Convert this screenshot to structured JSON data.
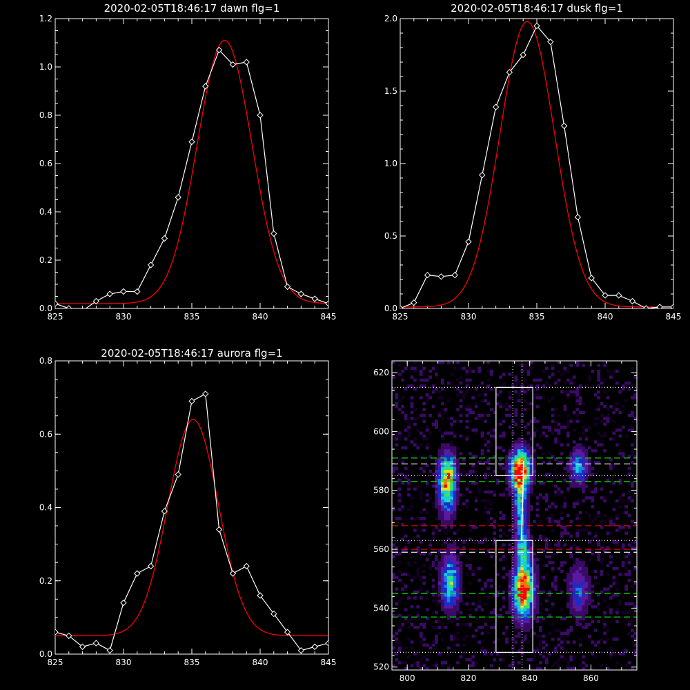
{
  "chart_data": [
    {
      "type": "line",
      "title": "2020-02-05T18:46:17 dawn flg=1",
      "xlim": [
        825,
        845
      ],
      "ylim": [
        0,
        1.2
      ],
      "xticks": [
        "825",
        "830",
        "835",
        "840",
        "845"
      ],
      "yticks": [
        "0.0",
        "0.2",
        "0.4",
        "0.6",
        "0.8",
        "1.0",
        "1.2"
      ],
      "series": [
        {
          "color": "#ffffff",
          "marker": "diamond",
          "x": [
            825,
            826,
            827,
            828,
            829,
            830,
            831,
            832,
            833,
            834,
            835,
            836,
            837,
            838,
            839,
            840,
            841,
            842,
            843,
            844,
            845
          ],
          "y": [
            0.02,
            0.0,
            -0.01,
            0.03,
            0.06,
            0.07,
            0.07,
            0.18,
            0.29,
            0.46,
            0.69,
            0.92,
            1.07,
            1.01,
            1.02,
            0.8,
            0.31,
            0.09,
            0.06,
            0.04,
            0.02
          ]
        },
        {
          "color": "#ff0000",
          "gaussian": {
            "amp": 1.09,
            "mu": 837.4,
            "sigma": 2.0,
            "base": 0.02
          }
        }
      ]
    },
    {
      "type": "line",
      "title": "2020-02-05T18:46:17 dusk flg=1",
      "xlim": [
        825,
        845
      ],
      "ylim": [
        0,
        2.0
      ],
      "xticks": [
        "825",
        "830",
        "835",
        "840",
        "845"
      ],
      "yticks": [
        "0.0",
        "0.5",
        "1.0",
        "1.5",
        "2.0"
      ],
      "series": [
        {
          "color": "#ffffff",
          "marker": "diamond",
          "x": [
            825,
            826,
            827,
            828,
            829,
            830,
            831,
            832,
            833,
            834,
            835,
            836,
            837,
            838,
            839,
            840,
            841,
            842,
            843,
            844,
            845
          ],
          "y": [
            0.0,
            0.04,
            0.23,
            0.22,
            0.23,
            0.46,
            0.92,
            1.39,
            1.63,
            1.75,
            1.95,
            1.84,
            1.26,
            0.63,
            0.21,
            0.09,
            0.09,
            0.05,
            0.0,
            0.01,
            0.01
          ]
        },
        {
          "color": "#ff0000",
          "gaussian": {
            "amp": 1.97,
            "mu": 834.3,
            "sigma": 2.0,
            "base": 0.01
          }
        }
      ]
    },
    {
      "type": "line",
      "title": "2020-02-05T18:46:17 aurora flg=1",
      "xlim": [
        825,
        845
      ],
      "ylim": [
        0,
        0.8
      ],
      "xticks": [
        "825",
        "830",
        "835",
        "840",
        "845"
      ],
      "yticks": [
        "0.0",
        "0.2",
        "0.4",
        "0.6",
        "0.8"
      ],
      "series": [
        {
          "color": "#ffffff",
          "marker": "diamond",
          "x": [
            825,
            826,
            827,
            828,
            829,
            830,
            831,
            832,
            833,
            834,
            835,
            836,
            837,
            838,
            839,
            840,
            841,
            842,
            843,
            844,
            845
          ],
          "y": [
            0.06,
            0.05,
            0.02,
            0.03,
            0.01,
            0.14,
            0.22,
            0.24,
            0.39,
            0.49,
            0.69,
            0.71,
            0.34,
            0.22,
            0.24,
            0.16,
            0.11,
            0.06,
            0.01,
            0.02,
            0.03
          ]
        },
        {
          "color": "#ff0000",
          "gaussian": {
            "amp": 0.59,
            "mu": 835.1,
            "sigma": 1.85,
            "base": 0.05
          }
        }
      ]
    },
    {
      "type": "heatmap",
      "xlim": [
        795,
        875
      ],
      "ylim": [
        519,
        624
      ],
      "xticks": [
        "800",
        "820",
        "840",
        "860"
      ],
      "yticks": [
        "520",
        "540",
        "560",
        "580",
        "600",
        "620"
      ],
      "colormap": [
        "#140022",
        "#3a0b66",
        "#5a1aa0",
        "#1a2cc8",
        "#1580e8",
        "#18d0d8",
        "#38e070",
        "#e0e020",
        "#ff7000",
        "#ff0000"
      ],
      "emission_blobs": [
        {
          "x": 813,
          "y": 585,
          "sx": 1.9,
          "sy": 5.0,
          "amp": 0.72
        },
        {
          "x": 813,
          "y": 578,
          "sx": 1.9,
          "sy": 6.0,
          "amp": 0.32
        },
        {
          "x": 837,
          "y": 587,
          "sx": 2.2,
          "sy": 4.5,
          "amp": 1.0
        },
        {
          "x": 837,
          "y": 575,
          "sx": 1.4,
          "sy": 8.0,
          "amp": 0.45
        },
        {
          "x": 856,
          "y": 588,
          "sx": 2.0,
          "sy": 4.0,
          "amp": 0.42
        },
        {
          "x": 814,
          "y": 549,
          "sx": 2.0,
          "sy": 6.0,
          "amp": 0.58
        },
        {
          "x": 838,
          "y": 546,
          "sx": 2.3,
          "sy": 6.0,
          "amp": 0.95
        },
        {
          "x": 838,
          "y": 560,
          "sx": 1.5,
          "sy": 5.0,
          "amp": 0.45
        },
        {
          "x": 856,
          "y": 546,
          "sx": 2.2,
          "sy": 6.0,
          "amp": 0.32
        }
      ],
      "boxes": [
        {
          "x0": 829,
          "x1": 841,
          "y0": 585,
          "y1": 615,
          "color": "#ffffff"
        },
        {
          "x0": 829,
          "x1": 841,
          "y0": 525,
          "y1": 563,
          "color": "#ffffff"
        }
      ],
      "hlines": [
        {
          "y": 615,
          "color": "#ffffff",
          "style": "dotted"
        },
        {
          "y": 585,
          "color": "#ffffff",
          "style": "dotted"
        },
        {
          "y": 525,
          "color": "#ffffff",
          "style": "dotted"
        },
        {
          "y": 563,
          "color": "#ffffff",
          "style": "dotted"
        },
        {
          "y": 591,
          "color": "#00ff00",
          "style": "dashed"
        },
        {
          "y": 583,
          "color": "#00ff00",
          "style": "dashed"
        },
        {
          "y": 545,
          "color": "#00ff00",
          "style": "dashed"
        },
        {
          "y": 537,
          "color": "#00ff00",
          "style": "dashed"
        },
        {
          "y": 589,
          "color": "#ffffff",
          "style": "dashed"
        },
        {
          "y": 559,
          "color": "#ffffff",
          "style": "dashed"
        },
        {
          "y": 568,
          "color": "#ff0000",
          "style": "dashed"
        },
        {
          "y": 560,
          "color": "#ff0000",
          "style": "dashed"
        }
      ],
      "vlines": [
        {
          "x": 834.5,
          "color": "#ffffff",
          "style": "dotted"
        },
        {
          "x": 837.5,
          "color": "#ffffff",
          "style": "dotted"
        }
      ],
      "trace": {
        "color": "#ffffff",
        "points": [
          [
            838,
            590
          ],
          [
            837.8,
            580
          ],
          [
            837.5,
            570
          ],
          [
            837.3,
            563
          ]
        ]
      }
    }
  ]
}
